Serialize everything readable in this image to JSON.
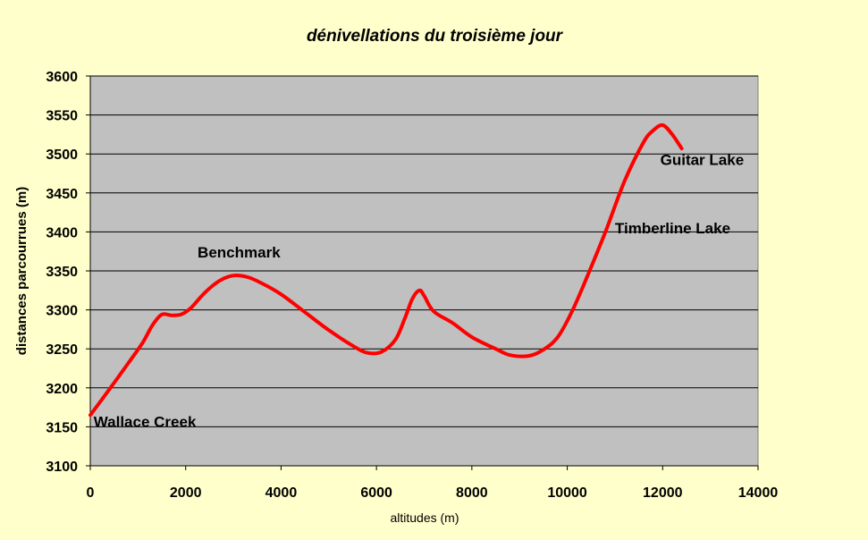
{
  "chart_data": {
    "type": "line",
    "title": "dénivellations du troisième jour",
    "xlabel": "altitudes (m)",
    "ylabel": "distances parcourrues (m)",
    "xlim": [
      0,
      14000
    ],
    "ylim": [
      3100,
      3600
    ],
    "x_ticks": [
      0,
      2000,
      4000,
      6000,
      8000,
      10000,
      12000,
      14000
    ],
    "y_ticks": [
      3100,
      3150,
      3200,
      3250,
      3300,
      3350,
      3400,
      3450,
      3500,
      3550,
      3600
    ],
    "grid": "horizontal",
    "legend": "none",
    "series": [
      {
        "color": "#ff0000",
        "points": [
          [
            0,
            3165
          ],
          [
            400,
            3198
          ],
          [
            800,
            3232
          ],
          [
            1100,
            3258
          ],
          [
            1300,
            3280
          ],
          [
            1500,
            3294
          ],
          [
            1700,
            3293
          ],
          [
            1900,
            3294
          ],
          [
            2100,
            3302
          ],
          [
            2400,
            3322
          ],
          [
            2700,
            3337
          ],
          [
            3000,
            3344
          ],
          [
            3300,
            3342
          ],
          [
            3600,
            3334
          ],
          [
            4000,
            3320
          ],
          [
            4500,
            3297
          ],
          [
            5000,
            3274
          ],
          [
            5500,
            3254
          ],
          [
            5800,
            3245
          ],
          [
            6100,
            3246
          ],
          [
            6400,
            3262
          ],
          [
            6600,
            3290
          ],
          [
            6750,
            3314
          ],
          [
            6900,
            3325
          ],
          [
            7000,
            3318
          ],
          [
            7200,
            3298
          ],
          [
            7600,
            3283
          ],
          [
            8000,
            3265
          ],
          [
            8500,
            3250
          ],
          [
            8800,
            3242
          ],
          [
            9200,
            3241
          ],
          [
            9500,
            3249
          ],
          [
            9800,
            3265
          ],
          [
            10100,
            3298
          ],
          [
            10400,
            3340
          ],
          [
            10800,
            3400
          ],
          [
            11200,
            3465
          ],
          [
            11600,
            3515
          ],
          [
            11800,
            3530
          ],
          [
            12000,
            3537
          ],
          [
            12200,
            3525
          ],
          [
            12400,
            3507
          ]
        ]
      }
    ],
    "annotations": [
      {
        "text": "Wallace Creek",
        "x": 70,
        "y": 3150
      },
      {
        "text": "Benchmark",
        "x": 2250,
        "y": 3367
      },
      {
        "text": "Timberline Lake",
        "x": 11000,
        "y": 3398
      },
      {
        "text": "Guitar Lake",
        "x": 11950,
        "y": 3486
      }
    ]
  }
}
